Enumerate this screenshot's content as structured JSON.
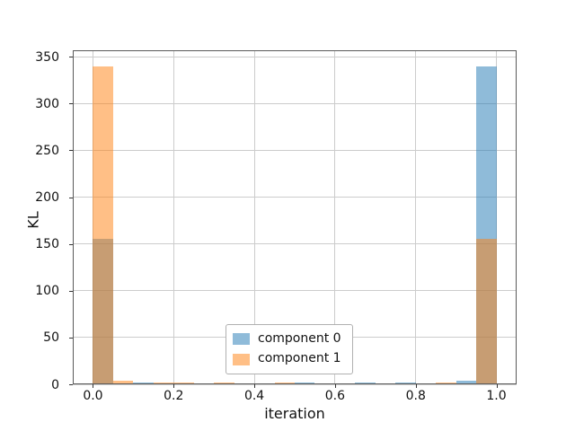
{
  "chart_data": {
    "type": "bar",
    "subtype": "overlapping-histogram",
    "title": "",
    "xlabel": "iteration",
    "ylabel": "KL",
    "xlim": [
      -0.05,
      1.05
    ],
    "ylim": [
      0,
      357
    ],
    "grid": true,
    "grid_color": "#cccccc",
    "background_color": "#ffffff",
    "xticks": [
      0.0,
      0.2,
      0.4,
      0.6,
      0.8,
      1.0
    ],
    "xtick_labels": [
      "0.0",
      "0.2",
      "0.4",
      "0.6",
      "0.8",
      "1.0"
    ],
    "yticks": [
      0,
      50,
      100,
      150,
      200,
      250,
      300,
      350
    ],
    "ytick_labels": [
      "0",
      "50",
      "100",
      "150",
      "200",
      "250",
      "300",
      "350"
    ],
    "bin_edges": [
      0,
      0.05,
      0.1,
      0.15,
      0.2,
      0.25,
      0.3,
      0.35,
      0.4,
      0.45,
      0.5,
      0.55,
      0.6,
      0.65,
      0.7,
      0.75,
      0.8,
      0.85,
      0.9,
      0.95,
      1.0
    ],
    "series": [
      {
        "name": "component 0",
        "color": "#1f77b4",
        "alpha": 0.5,
        "values": [
          155,
          0,
          2,
          0,
          0,
          0,
          0,
          1,
          0,
          0,
          1.5,
          0,
          0,
          2,
          1,
          1.5,
          1,
          0,
          3.5,
          340
        ]
      },
      {
        "name": "component 1",
        "color": "#ff7f0e",
        "alpha": 0.5,
        "values": [
          340,
          4,
          0,
          1.5,
          1.5,
          0,
          2,
          0,
          0,
          1.5,
          0,
          0,
          1,
          0,
          0,
          0,
          1,
          1.5,
          0,
          155
        ]
      }
    ],
    "legend": {
      "position": "lower-center",
      "entries": [
        "component 0",
        "component 1"
      ]
    }
  }
}
